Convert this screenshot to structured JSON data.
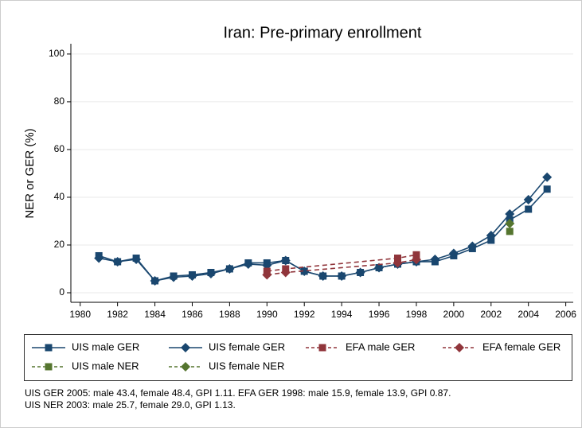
{
  "chart_data": {
    "type": "line",
    "title": "Iran: Pre-primary enrollment",
    "ylabel": "NER or GER (%)",
    "xlim": [
      1979.5,
      2006.4
    ],
    "ylim": [
      -4,
      104.3
    ],
    "xticks": [
      1980,
      1982,
      1984,
      1986,
      1988,
      1990,
      1992,
      1994,
      1996,
      1998,
      2000,
      2002,
      2004,
      2006
    ],
    "yticks": [
      0,
      20,
      40,
      60,
      80,
      100
    ],
    "grid": true,
    "series": [
      {
        "name": "UIS male GER",
        "color": "#1a476f",
        "marker": "square",
        "dashed": false,
        "x": [
          1981,
          1982,
          1983,
          1984,
          1985,
          1986,
          1987,
          1988,
          1989,
          1990,
          1991,
          1992,
          1993,
          1994,
          1995,
          1996,
          1997,
          1998,
          1999,
          2000,
          2001,
          2002,
          2003,
          2004,
          2005
        ],
        "values": [
          15.5,
          13,
          14.5,
          5,
          7,
          7.5,
          8.5,
          10,
          12.5,
          12.5,
          13.5,
          9,
          7,
          7,
          8.5,
          10.5,
          12,
          13,
          13,
          15.5,
          18.5,
          22,
          30.5,
          35,
          43.4
        ]
      },
      {
        "name": "UIS female GER",
        "color": "#1a476f",
        "marker": "diamond",
        "dashed": false,
        "x": [
          1981,
          1982,
          1983,
          1984,
          1985,
          1986,
          1987,
          1988,
          1989,
          1990,
          1991,
          1992,
          1993,
          1994,
          1995,
          1996,
          1997,
          1998,
          1999,
          2000,
          2001,
          2002,
          2003,
          2004,
          2005
        ],
        "values": [
          14.5,
          13,
          14,
          5,
          6.5,
          7,
          8,
          10,
          12,
          11.5,
          13.5,
          9,
          7,
          7,
          8.5,
          10.5,
          12,
          13,
          14,
          16.5,
          19.5,
          24,
          33,
          39,
          48.4
        ]
      },
      {
        "name": "EFA male GER",
        "color": "#90353b",
        "marker": "square",
        "dashed": true,
        "x": [
          1990,
          1991,
          1997,
          1998
        ],
        "values": [
          9,
          10,
          14.5,
          15.9
        ]
      },
      {
        "name": "EFA female GER",
        "color": "#90353b",
        "marker": "diamond",
        "dashed": true,
        "x": [
          1990,
          1991,
          1997,
          1998
        ],
        "values": [
          7.5,
          8.5,
          12.5,
          13.9
        ]
      },
      {
        "name": "UIS male NER",
        "color": "#55752f",
        "marker": "square",
        "dashed": true,
        "x": [
          2003
        ],
        "values": [
          25.7
        ]
      },
      {
        "name": "UIS female NER",
        "color": "#55752f",
        "marker": "diamond",
        "dashed": true,
        "x": [
          2003
        ],
        "values": [
          29.0
        ]
      }
    ],
    "notes": [
      "UIS GER 2005: male 43.4, female 48.4, GPI 1.11. EFA GER 1998: male 15.9, female 13.9, GPI 0.87.",
      "UIS NER 2003: male 25.7, female 29.0, GPI 1.13."
    ]
  }
}
